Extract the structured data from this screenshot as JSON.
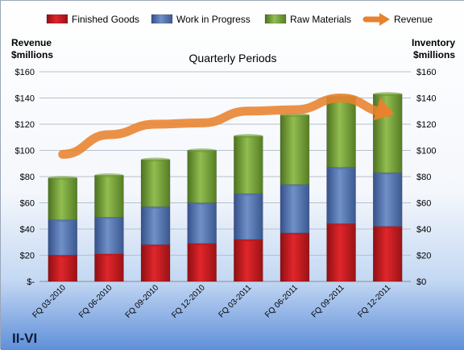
{
  "chart_data": {
    "type": "bar",
    "subtype": "stacked bar with line overlay",
    "title": "Quarterly Periods",
    "left_axis_label": [
      "Revenue",
      "$millions"
    ],
    "right_axis_label": [
      "Inventory",
      "$millions"
    ],
    "company": "II-VI",
    "categories": [
      "FQ 03-2010",
      "FQ 06-2010",
      "FQ 09-2010",
      "FQ 12-2010",
      "FQ 03-2011",
      "FQ 06-2011",
      "FQ 09-2011",
      "FQ 12-2011"
    ],
    "series": [
      {
        "name": "Finished Goods",
        "kind": "bar",
        "axis": "right",
        "color": "#c0171c",
        "values": [
          20,
          21,
          28,
          29,
          32,
          37,
          44,
          42
        ]
      },
      {
        "name": "Work in Progress",
        "kind": "bar",
        "axis": "right",
        "color": "#4f6fa8",
        "values": [
          27,
          28,
          29,
          31,
          35,
          37,
          43,
          41
        ]
      },
      {
        "name": "Raw Materials",
        "kind": "bar",
        "axis": "right",
        "color": "#6c9a2e",
        "values": [
          32,
          32,
          36,
          40,
          44,
          53,
          54,
          60
        ]
      },
      {
        "name": "Revenue",
        "kind": "line",
        "axis": "left",
        "color": "#e8822e",
        "values": [
          97,
          112,
          120,
          121,
          130,
          131,
          140,
          129
        ]
      }
    ],
    "left_ticks": [
      "$-",
      "$20",
      "$40",
      "$60",
      "$80",
      "$100",
      "$120",
      "$140",
      "$160"
    ],
    "right_ticks": [
      "$0",
      "$20",
      "$40",
      "$60",
      "$80",
      "$100",
      "$120",
      "$140",
      "$160"
    ],
    "ylim": [
      0,
      160
    ],
    "grid": "horizontal",
    "legend": "top"
  }
}
